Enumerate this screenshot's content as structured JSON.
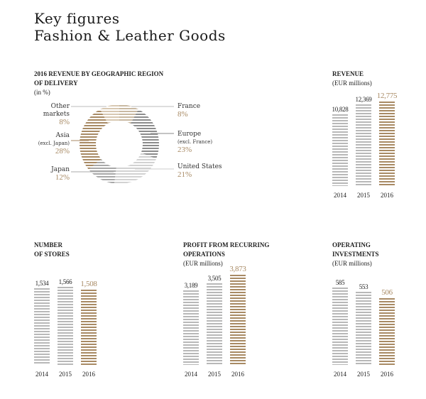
{
  "title_line1": "Key figures",
  "title_line2": "Fashion & Leather Goods",
  "colors": {
    "current": "#a88a64",
    "previous": "#b8b8b8"
  },
  "chart_data": [
    {
      "type": "pie",
      "title": "2016 REVENUE BY GEOGRAPHIC REGION",
      "title2": "OF DELIVERY",
      "unit": "(in %)",
      "slices": [
        {
          "name": "France",
          "note": "",
          "pct": "8%",
          "value": 8,
          "color": "#c9b9a2"
        },
        {
          "name": "Europe",
          "note": "(excl. France)",
          "pct": "23%",
          "value": 23,
          "color": "#8c8c8c"
        },
        {
          "name": "United States",
          "note": "",
          "pct": "21%",
          "value": 21,
          "color": "#d2d2d2"
        },
        {
          "name": "Japan",
          "note": "",
          "pct": "12%",
          "value": 12,
          "color": "#a8a8a8"
        },
        {
          "name": "Asia",
          "note": "(excl. Japan)",
          "pct": "28%",
          "value": 28,
          "color": "#a88a64"
        },
        {
          "name": "Other markets",
          "note": "",
          "pct": "8%",
          "value": 8,
          "color": "#d8c8b2"
        }
      ]
    },
    {
      "type": "bar",
      "title": "REVENUE",
      "title2": "",
      "unit": "(EUR millions)",
      "categories": [
        "2014",
        "2015",
        "2016"
      ],
      "values": [
        10828,
        12369,
        12775
      ],
      "labels": [
        "10,828",
        "12,369",
        "12,775"
      ],
      "ylim": [
        0,
        14000
      ]
    },
    {
      "type": "bar",
      "title": "NUMBER",
      "title2": "OF STORES",
      "unit": "",
      "categories": [
        "2014",
        "2015",
        "2016"
      ],
      "values": [
        1534,
        1566,
        1508
      ],
      "labels": [
        "1,534",
        "1,566",
        "1,508"
      ],
      "ylim": [
        0,
        1850
      ]
    },
    {
      "type": "bar",
      "title": "PROFIT FROM RECURRING",
      "title2": "OPERATIONS",
      "unit": "(EUR millions)",
      "categories": [
        "2014",
        "2015",
        "2016"
      ],
      "values": [
        3189,
        3505,
        3873
      ],
      "labels": [
        "3,189",
        "3,505",
        "3,873"
      ],
      "ylim": [
        0,
        3950
      ]
    },
    {
      "type": "bar",
      "title": "OPERATING",
      "title2": "INVESTMENTS",
      "unit": "(EUR millions)",
      "categories": [
        "2014",
        "2015",
        "2016"
      ],
      "values": [
        585,
        553,
        506
      ],
      "labels": [
        "585",
        "553",
        "506"
      ],
      "ylim": [
        0,
        700
      ]
    }
  ]
}
